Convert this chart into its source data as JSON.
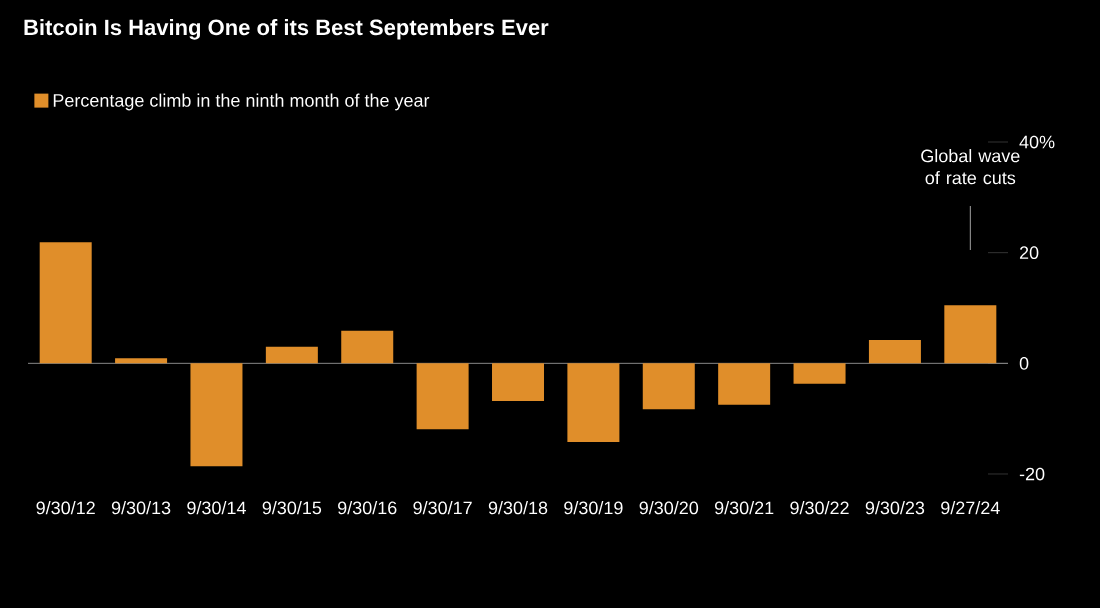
{
  "chart_data": {
    "type": "bar",
    "title": "Bitcoin Is Having One of its Best Septembers Ever",
    "categories": [
      "9/30/12",
      "9/30/13",
      "9/30/14",
      "9/30/15",
      "9/30/16",
      "9/30/17",
      "9/30/18",
      "9/30/19",
      "9/30/20",
      "9/30/21",
      "9/30/22",
      "9/30/23",
      "9/27/24"
    ],
    "series": [
      {
        "name": "Percentage climb in the ninth month of the year",
        "color": "#e08e2a",
        "values": [
          21.9,
          0.9,
          -18.6,
          3.0,
          5.9,
          -11.9,
          -6.8,
          -14.2,
          -8.3,
          -7.5,
          -3.7,
          4.2,
          10.5
        ]
      }
    ],
    "ylim": [
      -20,
      40
    ],
    "yticks": [
      -20,
      0,
      20,
      {
        "value": 40,
        "label": "40%"
      }
    ],
    "ref_lines": [
      {
        "axis": "y",
        "value": 0,
        "color": "#aaaaaa"
      }
    ],
    "annotations": [
      "Global wave of rate cuts"
    ],
    "legend": "top left"
  }
}
